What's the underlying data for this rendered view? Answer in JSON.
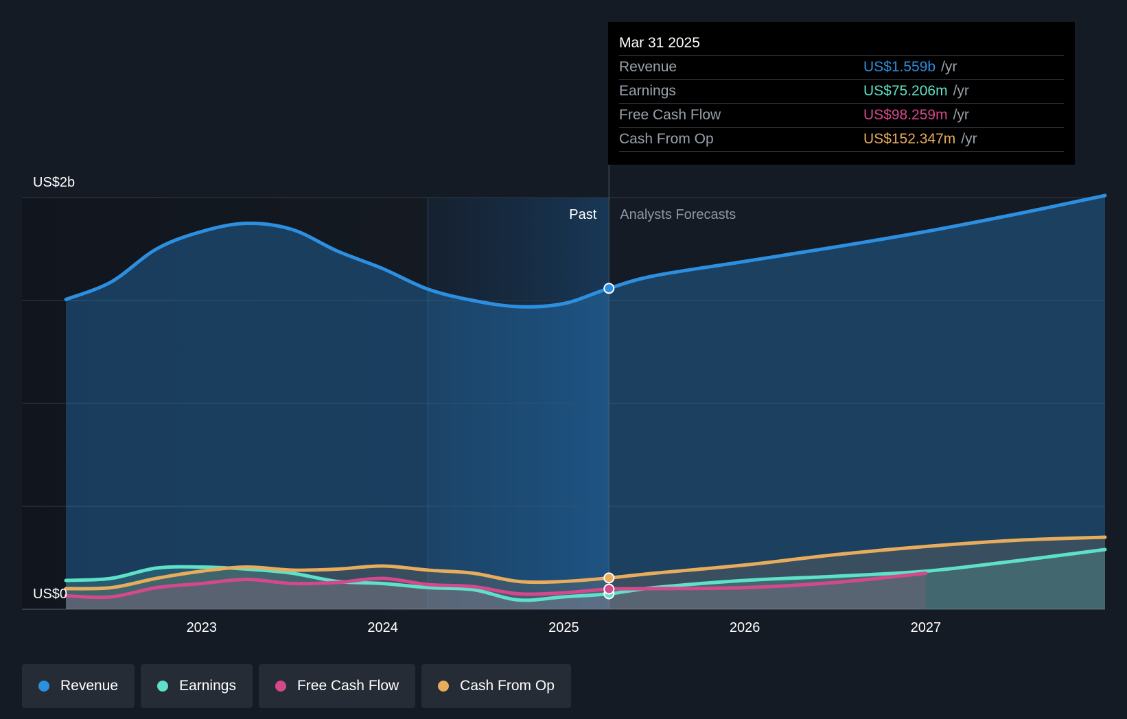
{
  "chart_data": {
    "type": "area",
    "y_unit_labels": {
      "top": "US$2b",
      "bottom": "US$0"
    },
    "ylim": [
      0,
      2000
    ],
    "y_units": "US$ millions",
    "x_ticks": [
      "2023",
      "2024",
      "2025",
      "2026",
      "2027"
    ],
    "xlim": [
      2022.25,
      2027.99
    ],
    "past_label": "Past",
    "forecast_label": "Analysts Forecasts",
    "divider_x": 2025.25,
    "series": [
      {
        "name": "Revenue",
        "color": "#2d8fe0",
        "x": [
          2022.25,
          2022.5,
          2022.75,
          2023.0,
          2023.25,
          2023.5,
          2023.75,
          2024.0,
          2024.25,
          2024.5,
          2024.75,
          2025.0,
          2025.25,
          2025.5,
          2026.0,
          2026.5,
          2027.0,
          2027.5,
          2027.99
        ],
        "y": [
          1505,
          1590,
          1750,
          1835,
          1875,
          1845,
          1740,
          1655,
          1555,
          1500,
          1470,
          1485,
          1559,
          1620,
          1690,
          1760,
          1835,
          1920,
          2010
        ]
      },
      {
        "name": "Earnings",
        "color": "#5fe0c8",
        "x": [
          2022.25,
          2022.5,
          2022.75,
          2023.0,
          2023.25,
          2023.5,
          2023.75,
          2024.0,
          2024.25,
          2024.5,
          2024.75,
          2025.0,
          2025.25,
          2025.5,
          2026.0,
          2026.5,
          2027.0,
          2027.5,
          2027.99
        ],
        "y": [
          140,
          150,
          200,
          205,
          195,
          175,
          135,
          125,
          105,
          95,
          45,
          60,
          75,
          105,
          140,
          160,
          185,
          235,
          290
        ]
      },
      {
        "name": "Free Cash Flow",
        "color": "#d4498c",
        "x": [
          2022.25,
          2022.5,
          2022.75,
          2023.0,
          2023.25,
          2023.5,
          2023.75,
          2024.0,
          2024.25,
          2024.5,
          2024.75,
          2025.0,
          2025.25,
          2025.5,
          2026.0,
          2026.5,
          2027.0
        ],
        "y": [
          65,
          60,
          105,
          125,
          145,
          125,
          130,
          150,
          120,
          110,
          75,
          80,
          98,
          100,
          105,
          130,
          175
        ]
      },
      {
        "name": "Cash From Op",
        "color": "#e8ac5d",
        "x": [
          2022.25,
          2022.5,
          2022.75,
          2023.0,
          2023.25,
          2023.5,
          2023.75,
          2024.0,
          2024.25,
          2024.5,
          2024.75,
          2025.0,
          2025.25,
          2025.5,
          2026.0,
          2026.5,
          2027.0,
          2027.5,
          2027.99
        ],
        "y": [
          100,
          105,
          150,
          185,
          205,
          190,
          195,
          210,
          190,
          175,
          135,
          135,
          152,
          175,
          215,
          265,
          305,
          335,
          350
        ]
      }
    ],
    "tooltip": {
      "date": "Mar 31 2025",
      "rows": [
        {
          "name": "Revenue",
          "value": "US$1.559b",
          "unit": "/yr",
          "color": "#2d8fe0"
        },
        {
          "name": "Earnings",
          "value": "US$75.206m",
          "unit": "/yr",
          "color": "#5fe0c8"
        },
        {
          "name": "Free Cash Flow",
          "value": "US$98.259m",
          "unit": "/yr",
          "color": "#d4498c"
        },
        {
          "name": "Cash From Op",
          "value": "US$152.347m",
          "unit": "/yr",
          "color": "#e8ac5d"
        }
      ]
    }
  },
  "legend": [
    {
      "label": "Revenue",
      "color": "#2d8fe0"
    },
    {
      "label": "Earnings",
      "color": "#5fe0c8"
    },
    {
      "label": "Free Cash Flow",
      "color": "#d4498c"
    },
    {
      "label": "Cash From Op",
      "color": "#e8ac5d"
    }
  ]
}
